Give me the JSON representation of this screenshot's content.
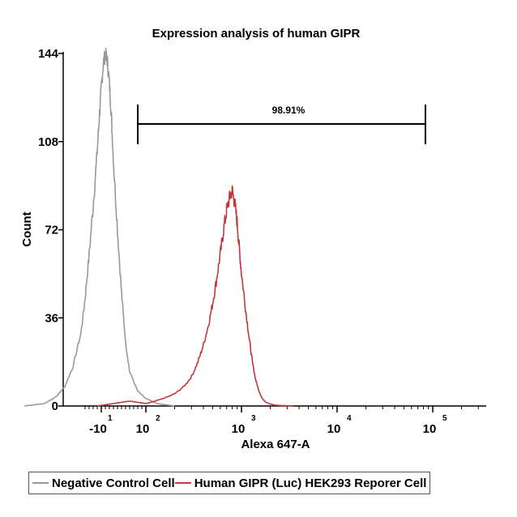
{
  "chart_data": {
    "type": "line",
    "title": "Expression analysis of human GIPR",
    "xlabel": "Alexa 647-A",
    "ylabel": "Count",
    "ylim": [
      0,
      144
    ],
    "yticks": [
      0,
      36,
      72,
      108,
      144
    ],
    "xticks": [
      {
        "base": "-10",
        "exp": "1"
      },
      {
        "base": "10",
        "exp": "2"
      },
      {
        "base": "10",
        "exp": "3"
      },
      {
        "base": "10",
        "exp": "4"
      },
      {
        "base": "10",
        "exp": "5"
      }
    ],
    "grid": false,
    "legend_position": "bottom",
    "gate": {
      "label": "98.91%"
    },
    "series": [
      {
        "name": "Negative Control Cell",
        "color": "#999999",
        "x": [
          -200,
          -150,
          -120,
          -100,
          -80,
          -60,
          -50,
          -40,
          -30,
          -20,
          -15,
          -10,
          -5,
          0,
          5,
          10,
          15,
          20,
          30,
          40,
          50,
          60,
          80,
          100,
          130,
          160,
          200
        ],
        "y": [
          0,
          1,
          4,
          8,
          16,
          30,
          44,
          62,
          82,
          104,
          118,
          130,
          140,
          144,
          141,
          132,
          118,
          100,
          72,
          46,
          26,
          14,
          6,
          3,
          1,
          0.5,
          0
        ]
      },
      {
        "name": "Human GIPR (Luc) HEK293 Reporer Cell",
        "color": "#c0393b",
        "x": [
          -20,
          20,
          60,
          100,
          150,
          200,
          250,
          300,
          350,
          400,
          450,
          500,
          550,
          600,
          650,
          700,
          750,
          800,
          850,
          900,
          950,
          1000,
          1100,
          1200,
          1300,
          1400,
          1500,
          1600,
          1700,
          1800,
          2000,
          2200,
          2500,
          3000,
          3500
        ],
        "y": [
          0,
          1,
          2,
          1,
          3,
          5,
          8,
          12,
          18,
          25,
          33,
          42,
          52,
          62,
          72,
          80,
          85,
          88,
          83,
          75,
          64,
          54,
          40,
          28,
          18,
          11,
          7,
          4,
          2.5,
          1.5,
          0.8,
          0.4,
          0.2,
          0.1,
          0
        ]
      }
    ]
  }
}
